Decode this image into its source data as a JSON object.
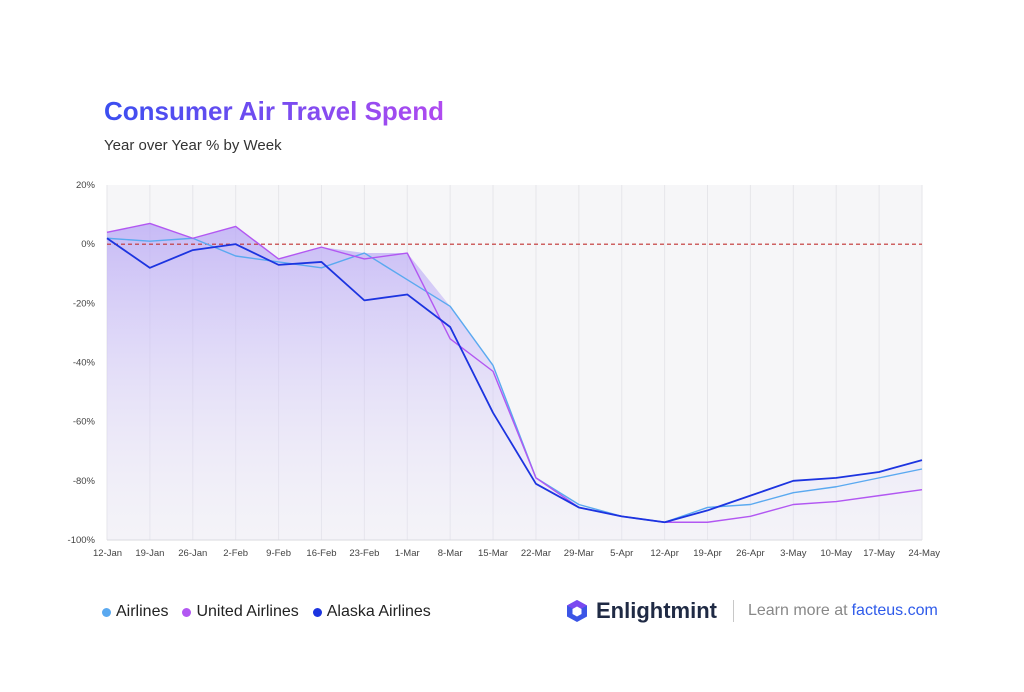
{
  "chart_data": {
    "type": "line",
    "title": "Consumer Air Travel Spend",
    "subtitle": "Year over Year % by Week",
    "x": [
      "12-Jan",
      "19-Jan",
      "26-Jan",
      "2-Feb",
      "9-Feb",
      "16-Feb",
      "23-Feb",
      "1-Mar",
      "8-Mar",
      "15-Mar",
      "22-Mar",
      "29-Mar",
      "5-Apr",
      "12-Apr",
      "19-Apr",
      "26-Apr",
      "3-May",
      "10-May",
      "17-May",
      "24-May"
    ],
    "yticks": [
      "20%",
      "0%",
      "-20%",
      "-40%",
      "-60%",
      "-80%",
      "-100%"
    ],
    "ylim": [
      -100,
      20
    ],
    "reference_line": 0,
    "legend_position": "bottom-left",
    "series": [
      {
        "name": "Airlines",
        "color": "#5aa9f0",
        "values": [
          2,
          1,
          2,
          -4,
          -6,
          -8,
          -3,
          -12,
          -21,
          -41,
          -79,
          -88,
          -92,
          -94,
          -89,
          -88,
          -84,
          -82,
          -79,
          -76
        ]
      },
      {
        "name": "United Airlines",
        "color": "#b257f2",
        "values": [
          4,
          7,
          2,
          6,
          -5,
          -1,
          -5,
          -3,
          -32,
          -43,
          -79,
          -89,
          -92,
          -94,
          -94,
          -92,
          -88,
          -87,
          -85,
          -83
        ]
      },
      {
        "name": "Alaska Airlines",
        "color": "#1c34e0",
        "values": [
          2,
          -8,
          -2,
          0,
          -7,
          -6,
          -19,
          -17,
          -28,
          -57,
          -81,
          -89,
          -92,
          -94,
          -90,
          -85,
          -80,
          -79,
          -77,
          -73
        ]
      }
    ]
  },
  "brand": {
    "name": "Enlightmint",
    "cta": "Learn more at",
    "link": "facteus.com",
    "icon": "hexagon-logo-icon"
  }
}
